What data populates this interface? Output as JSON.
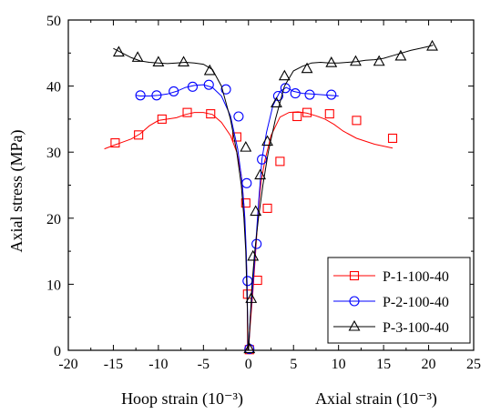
{
  "chart_data": {
    "type": "line",
    "ylabel": "Axial stress (MPa)",
    "xlabel_left": "Hoop strain (10⁻³)",
    "xlabel_right": "Axial strain (10⁻³)",
    "xlim": [
      -20,
      25
    ],
    "ylim": [
      0,
      50
    ],
    "xticks": [
      -20,
      -15,
      -10,
      -5,
      0,
      5,
      10,
      15,
      20,
      25
    ],
    "yticks": [
      0,
      10,
      20,
      30,
      40,
      50
    ],
    "grid": false,
    "legend_position": "bottom-right",
    "series": [
      {
        "name": "P-1-100-40",
        "color": "#ff0000",
        "marker": "square",
        "hoop": {
          "x": [
            -0.1,
            -0.12,
            -0.15,
            -0.2,
            -0.3,
            -0.5,
            -0.8,
            -1.3,
            -2,
            -3,
            -4,
            -5,
            -6,
            -7,
            -8,
            -9,
            -10,
            -11,
            -12,
            -13,
            -14,
            -15,
            -16
          ],
          "y": [
            0,
            5,
            8.5,
            12,
            16,
            22,
            26.5,
            30,
            32.5,
            34.5,
            35.7,
            36,
            36,
            35.7,
            35.2,
            35,
            34.8,
            34,
            32.8,
            32,
            31.5,
            31,
            30.5
          ]
        },
        "hoop_markers": {
          "x": [
            -0.1,
            -0.3,
            -1.3,
            -4.2,
            -6.8,
            -9.6,
            -12.2,
            -14.8
          ],
          "y": [
            8.5,
            22.3,
            32.3,
            35.8,
            36,
            35,
            32.6,
            31.4
          ]
        },
        "axial": {
          "x": [
            0,
            0.2,
            0.5,
            0.8,
            1.1,
            1.4,
            1.8,
            2.5,
            3.5,
            4.5,
            5.5,
            6.5,
            7.5,
            8.5,
            9.5,
            10.5,
            12,
            14,
            16
          ],
          "y": [
            0,
            4,
            9,
            15,
            21.5,
            25.5,
            28.6,
            32.5,
            35.3,
            36,
            36.1,
            35.9,
            35.5,
            35,
            34.2,
            33.2,
            32.1,
            31.2,
            30.6
          ]
        },
        "axial_markers": {
          "x": [
            0.1,
            1,
            2.1,
            3.5,
            5.4,
            6.5,
            9,
            12,
            16
          ],
          "y": [
            0.1,
            10.6,
            21.5,
            28.6,
            35.4,
            36,
            35.8,
            34.8,
            32.1
          ]
        }
      },
      {
        "name": "P-2-100-40",
        "color": "#0000ff",
        "marker": "circle",
        "hoop": {
          "x": [
            -0.05,
            -0.1,
            -0.15,
            -0.25,
            -0.4,
            -0.7,
            -1.2,
            -2,
            -3,
            -4,
            -5,
            -6,
            -7,
            -8,
            -9,
            -10,
            -11,
            -12,
            -12.5
          ],
          "y": [
            0,
            5,
            10,
            15,
            20,
            25.3,
            30.5,
            35.5,
            38.5,
            39.8,
            40.2,
            40.1,
            39.8,
            39.2,
            38.8,
            38.6,
            38.5,
            38.5,
            38.6
          ]
        },
        "hoop_markers": {
          "x": [
            -0.1,
            -0.2,
            -1.1,
            -2.5,
            -4.4,
            -6.2,
            -8.3,
            -10.2,
            -12
          ],
          "y": [
            10.5,
            25.3,
            35.4,
            39.5,
            40.2,
            39.9,
            39.2,
            38.6,
            38.6
          ]
        },
        "axial": {
          "x": [
            0,
            0.2,
            0.5,
            0.8,
            1.1,
            1.5,
            2,
            2.7,
            3.5,
            4.2,
            5,
            6,
            7,
            8,
            9,
            10
          ],
          "y": [
            0,
            5,
            10,
            16,
            22,
            29,
            33,
            37,
            39.2,
            39.8,
            39.2,
            38.9,
            38.8,
            38.7,
            38.6,
            38.5
          ]
        },
        "axial_markers": {
          "x": [
            0.1,
            0.9,
            1.5,
            3.3,
            4.1,
            5.2,
            6.8,
            9.2
          ],
          "y": [
            0.2,
            16.1,
            28.9,
            38.5,
            39.7,
            38.9,
            38.7,
            38.7
          ]
        }
      },
      {
        "name": "P-3-100-40",
        "color": "#000000",
        "marker": "triangle",
        "hoop": {
          "x": [
            -0.05,
            -0.1,
            -0.2,
            -0.3,
            -0.5,
            -0.8,
            -1.3,
            -2,
            -3,
            -4,
            -5,
            -6,
            -7,
            -8,
            -9,
            -10,
            -11,
            -12,
            -13,
            -14,
            -15
          ],
          "y": [
            0,
            5,
            10,
            15,
            20,
            25,
            30,
            35,
            40,
            42.5,
            43.3,
            43.5,
            43.6,
            43.5,
            43.4,
            43.5,
            43.6,
            43.8,
            44.3,
            45,
            45.7
          ]
        },
        "hoop_markers": {
          "x": [
            -0.3,
            -4.3,
            -7.2,
            -10,
            -12.3,
            -14.4
          ],
          "y": [
            30.7,
            42.3,
            43.6,
            43.6,
            44.3,
            45.1
          ]
        },
        "axial": {
          "x": [
            0,
            0.2,
            0.4,
            0.7,
            1.1,
            1.6,
            2.2,
            3,
            4,
            5,
            6,
            7,
            8,
            9,
            10,
            11,
            12,
            13,
            14,
            15,
            16,
            17,
            18,
            19,
            20,
            20.5
          ],
          "y": [
            0,
            5,
            10,
            15,
            20,
            25,
            30,
            35,
            40,
            42.3,
            43,
            43.5,
            43.6,
            43.5,
            43.5,
            43.6,
            43.7,
            43.9,
            44,
            44.2,
            44.6,
            45,
            45.4,
            45.7,
            46,
            46.2
          ]
        },
        "axial_markers": {
          "x": [
            0.1,
            0.3,
            0.5,
            0.8,
            1.3,
            2.1,
            3.1,
            4,
            6.5,
            9.2,
            11.9,
            14.5,
            16.9,
            20.4
          ],
          "y": [
            0.2,
            7.8,
            14.2,
            21,
            26.5,
            31.6,
            37.4,
            41.5,
            42.6,
            43.5,
            43.7,
            43.7,
            44.5,
            46
          ]
        }
      }
    ]
  }
}
